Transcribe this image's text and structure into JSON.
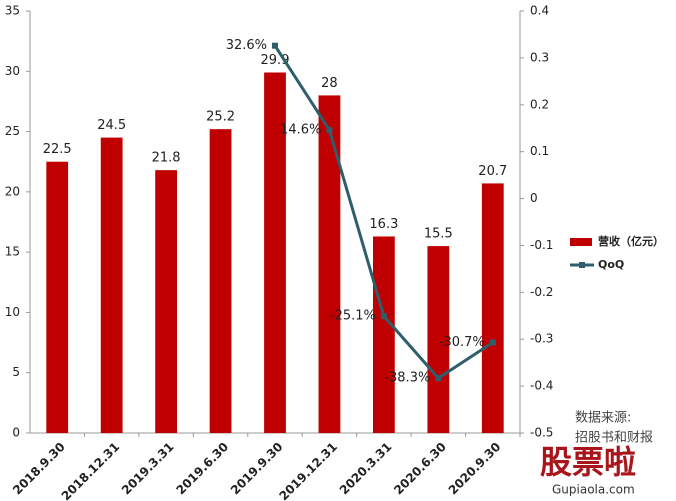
{
  "chart_data": {
    "type": "bar",
    "categories": [
      "2018.9.30",
      "2018.12.31",
      "2019.3.31",
      "2019.6.30",
      "2019.9.30",
      "2019.12.31",
      "2020.3.31",
      "2020.6.30",
      "2020.9.30"
    ],
    "series": [
      {
        "name": "营收（亿元）",
        "type": "bar",
        "color": "#c00000",
        "values": [
          22.5,
          24.5,
          21.8,
          25.2,
          29.9,
          28.0,
          16.3,
          15.5,
          20.7
        ]
      },
      {
        "name": "QoQ",
        "type": "line",
        "axis": "y2",
        "color": "#2e5e6c",
        "values": [
          null,
          null,
          null,
          null,
          0.326,
          0.146,
          -0.251,
          -0.383,
          -0.307
        ],
        "value_labels": [
          null,
          null,
          null,
          null,
          "32.6%",
          "14.6%",
          "-25.1%",
          "-38.3%",
          "-30.7%"
        ]
      }
    ],
    "ylim": [
      0,
      35
    ],
    "yticks": [
      0,
      5,
      10,
      15,
      20,
      25,
      30,
      35
    ],
    "y2lim": [
      -0.5,
      0.4
    ],
    "y2ticks": [
      -0.5,
      -0.4,
      -0.3,
      -0.2,
      -0.1,
      0,
      0.1,
      0.2,
      0.3,
      0.4
    ],
    "legend": "right",
    "source": "数据来源:",
    "source_detail": "招股书和财报",
    "watermark": "股票啦",
    "watermark_url": "Gupiaola.com"
  }
}
